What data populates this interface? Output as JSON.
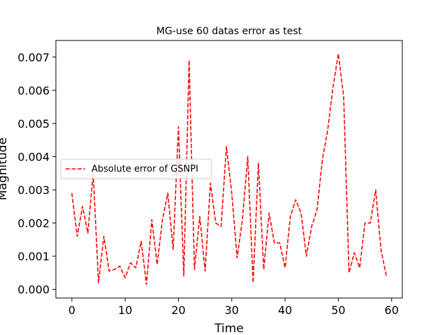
{
  "chart_data": {
    "type": "line",
    "title": "MG-use 60 datas error as test",
    "xlabel": "Time",
    "ylabel": "Magnitude",
    "xlim": [
      -3,
      62
    ],
    "ylim": [
      -0.00026,
      0.0075
    ],
    "xticks": [
      0,
      10,
      20,
      30,
      40,
      50,
      60
    ],
    "yticks": [
      0.0,
      0.001,
      0.002,
      0.003,
      0.004,
      0.005,
      0.006,
      0.007
    ],
    "xtick_labels": [
      "0",
      "10",
      "20",
      "30",
      "40",
      "50",
      "60"
    ],
    "ytick_labels": [
      "0.000",
      "0.001",
      "0.002",
      "0.003",
      "0.004",
      "0.005",
      "0.006",
      "0.007"
    ],
    "grid": false,
    "legend_position": "center-left",
    "series": [
      {
        "name": "Absolute error of GSNPI",
        "color": "#ff0000",
        "line_style": "dashed",
        "x": [
          0,
          1,
          2,
          3,
          4,
          5,
          6,
          7,
          8,
          9,
          10,
          11,
          12,
          13,
          14,
          15,
          16,
          17,
          18,
          19,
          20,
          21,
          22,
          23,
          24,
          25,
          26,
          27,
          28,
          29,
          30,
          31,
          32,
          33,
          34,
          35,
          36,
          37,
          38,
          39,
          40,
          41,
          42,
          43,
          44,
          45,
          46,
          47,
          48,
          49,
          50,
          51,
          52,
          53,
          54,
          55,
          56,
          57,
          58,
          59
        ],
        "y": [
          0.0029,
          0.0016,
          0.0025,
          0.0017,
          0.0035,
          0.0002,
          0.0016,
          0.00055,
          0.0006,
          0.0007,
          0.00035,
          0.0008,
          0.00065,
          0.00145,
          0.00015,
          0.0021,
          0.00075,
          0.0021,
          0.0029,
          0.0012,
          0.0049,
          0.0004,
          0.0069,
          0.0006,
          0.0022,
          0.00055,
          0.0032,
          0.002,
          0.0019,
          0.0043,
          0.0029,
          0.00095,
          0.0021,
          0.004,
          0.0002,
          0.0038,
          0.0006,
          0.0023,
          0.0014,
          0.0014,
          0.00065,
          0.0022,
          0.0027,
          0.0023,
          0.001,
          0.0019,
          0.0024,
          0.0039,
          0.0048,
          0.0061,
          0.0071,
          0.0058,
          0.0005,
          0.0011,
          0.00065,
          0.002,
          0.002,
          0.003,
          0.0012,
          0.0004
        ]
      }
    ]
  }
}
